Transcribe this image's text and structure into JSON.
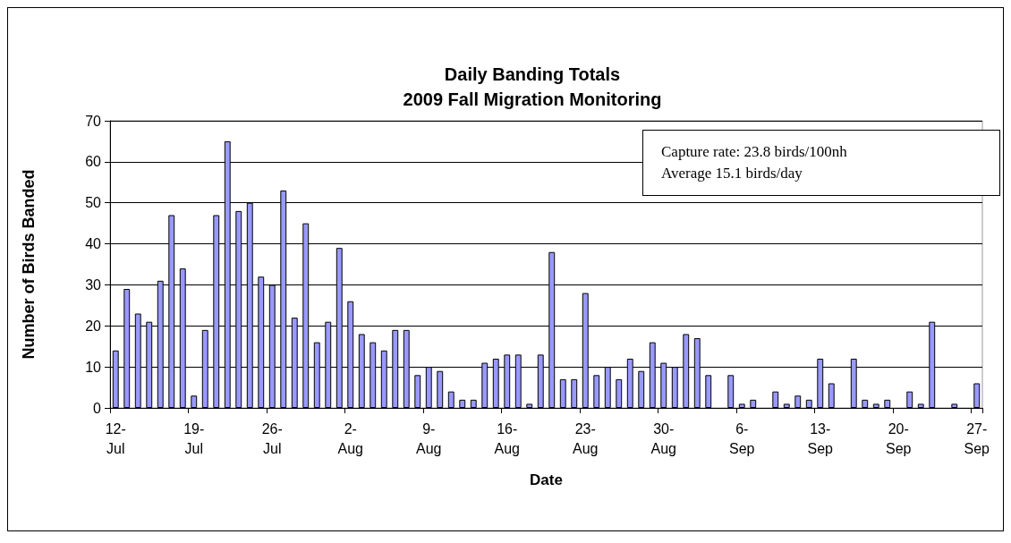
{
  "chart_data": {
    "type": "bar",
    "title": "Daily Banding Totals",
    "subtitle": "2009 Fall Migration Monitoring",
    "xlabel": "Date",
    "ylabel": "Number of Birds Banded",
    "annotations": [
      "Capture rate: 23.8 birds/100nh",
      "Average 15.1 birds/day"
    ],
    "categories": [
      "12-Jul",
      null,
      null,
      null,
      null,
      null,
      null,
      "19-Jul",
      null,
      null,
      null,
      null,
      null,
      null,
      "26-Jul",
      null,
      null,
      null,
      null,
      null,
      null,
      "2-Aug",
      null,
      null,
      null,
      null,
      null,
      null,
      "9-Aug",
      null,
      null,
      null,
      null,
      null,
      null,
      "16-Aug",
      null,
      null,
      null,
      null,
      null,
      null,
      "23-Aug",
      null,
      null,
      null,
      null,
      null,
      null,
      "30-Aug",
      null,
      null,
      null,
      null,
      null,
      null,
      "6-Sep",
      null,
      null,
      null,
      null,
      null,
      null,
      "13-Sep",
      null,
      null,
      null,
      null,
      null,
      null,
      "20-Sep",
      null,
      null,
      null,
      null,
      null,
      null,
      "27-Sep"
    ],
    "values": [
      14,
      29,
      23,
      21,
      31,
      47,
      34,
      3,
      19,
      47,
      65,
      48,
      50,
      32,
      30,
      53,
      22,
      45,
      16,
      21,
      39,
      26,
      18,
      16,
      14,
      19,
      19,
      8,
      10,
      9,
      4,
      2,
      2,
      11,
      12,
      13,
      13,
      1,
      13,
      38,
      7,
      7,
      28,
      8,
      10,
      7,
      12,
      9,
      16,
      11,
      10,
      18,
      17,
      8,
      null,
      8,
      1,
      2,
      null,
      4,
      1,
      3,
      2,
      12,
      6,
      null,
      12,
      2,
      1,
      2,
      null,
      4,
      1,
      21,
      null,
      1,
      null,
      6
    ],
    "color": "#9999ff",
    "ylim": [
      0,
      70
    ],
    "yticks": [
      0,
      10,
      20,
      30,
      40,
      50,
      60,
      70
    ],
    "grid": "y"
  }
}
